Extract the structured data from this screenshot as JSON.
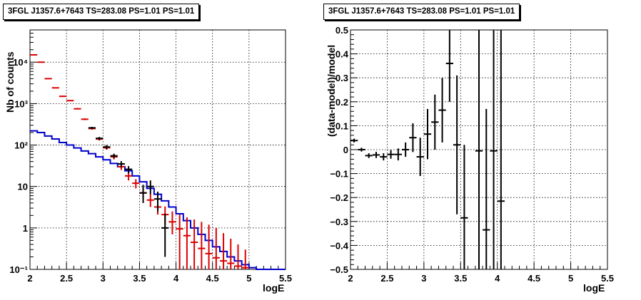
{
  "chart_data": [
    {
      "type": "scatter",
      "title": "3FGL J1357.6+7643 TS=283.08 PS=1.01 PS=1.01",
      "xlabel": "logE",
      "ylabel": "Nb of counts",
      "xlim": [
        2,
        5.5
      ],
      "ylim": [
        0.1,
        60000
      ],
      "yscale": "log",
      "grid": true,
      "xticks": [
        "2",
        "2.5",
        "3",
        "3.5",
        "4",
        "4.5",
        "5",
        "5.5"
      ],
      "yticks": [
        {
          "v": 0.1,
          "label": "10⁻¹"
        },
        {
          "v": 1,
          "label": "1"
        },
        {
          "v": 10,
          "label": "10"
        },
        {
          "v": 100,
          "label": "10²"
        },
        {
          "v": 1000,
          "label": "10³"
        },
        {
          "v": 10000,
          "label": "10⁴"
        }
      ],
      "series": [
        {
          "color": "#0000cc",
          "style": "step",
          "bins": [
            2.0,
            2.1,
            2.2,
            2.3,
            2.4,
            2.5,
            2.6,
            2.7,
            2.8,
            2.9,
            3.0,
            3.1,
            3.2,
            3.3,
            3.4,
            3.5,
            3.6,
            3.7,
            3.8,
            3.9,
            4.0,
            4.1,
            4.2,
            4.3,
            4.4,
            4.5,
            4.6,
            4.7,
            4.8,
            4.9,
            5.0,
            5.1,
            5.2,
            5.3,
            5.4,
            5.5
          ],
          "values": [
            220,
            200,
            165,
            140,
            115,
            100,
            85,
            72,
            62,
            52,
            44,
            36,
            30,
            24,
            18,
            13,
            9,
            6.5,
            4.5,
            3.2,
            2.2,
            1.5,
            1.0,
            0.7,
            0.5,
            0.35,
            0.27,
            0.2,
            0.16,
            0.13,
            0.11,
            0.1,
            0.1,
            0.1,
            0.1
          ]
        },
        {
          "color": "#dd0000",
          "style": "errorbar",
          "halfwidth": 0.05,
          "points": [
            {
              "x": 2.05,
              "y": 15000,
              "lo": 14700,
              "hi": 15300
            },
            {
              "x": 2.15,
              "y": 10000,
              "lo": 9800,
              "hi": 10200
            },
            {
              "x": 2.25,
              "y": 4000,
              "lo": 3900,
              "hi": 4100
            },
            {
              "x": 2.35,
              "y": 2400,
              "lo": 2330,
              "hi": 2470
            },
            {
              "x": 2.45,
              "y": 1500,
              "lo": 1450,
              "hi": 1550
            },
            {
              "x": 2.55,
              "y": 1180,
              "lo": 1140,
              "hi": 1220
            },
            {
              "x": 2.65,
              "y": 750,
              "lo": 720,
              "hi": 780
            },
            {
              "x": 2.75,
              "y": 420,
              "lo": 400,
              "hi": 440
            },
            {
              "x": 2.85,
              "y": 250,
              "lo": 235,
              "hi": 265
            },
            {
              "x": 2.95,
              "y": 140,
              "lo": 128,
              "hi": 152
            },
            {
              "x": 3.05,
              "y": 86,
              "lo": 77,
              "hi": 95
            },
            {
              "x": 3.15,
              "y": 52,
              "lo": 45,
              "hi": 59
            },
            {
              "x": 3.25,
              "y": 30,
              "lo": 25,
              "hi": 35
            },
            {
              "x": 3.35,
              "y": 18,
              "lo": 14,
              "hi": 22
            },
            {
              "x": 3.45,
              "y": 12,
              "lo": 9,
              "hi": 15
            },
            {
              "x": 3.55,
              "y": 7,
              "lo": 5,
              "hi": 9.5
            },
            {
              "x": 3.65,
              "y": 4.7,
              "lo": 3.2,
              "hi": 6.5
            },
            {
              "x": 3.75,
              "y": 3.2,
              "lo": 2.1,
              "hi": 4.6
            },
            {
              "x": 3.85,
              "y": 2.1,
              "lo": 1.2,
              "hi": 3.3
            },
            {
              "x": 3.95,
              "y": 1.4,
              "lo": 0.7,
              "hi": 2.5
            },
            {
              "x": 4.05,
              "y": 0.95,
              "lo": 0.1,
              "hi": 2.1
            },
            {
              "x": 4.15,
              "y": 0.65,
              "lo": 0.1,
              "hi": 1.8
            },
            {
              "x": 4.25,
              "y": 0.45,
              "lo": 0.1,
              "hi": 1.6
            },
            {
              "x": 4.35,
              "y": 0.32,
              "lo": 0.1,
              "hi": 1.4
            },
            {
              "x": 4.45,
              "y": 0.24,
              "lo": 0.1,
              "hi": 1.2
            },
            {
              "x": 4.55,
              "y": 0.19,
              "lo": 0.1,
              "hi": 1.0
            },
            {
              "x": 4.65,
              "y": 0.16,
              "lo": 0.1,
              "hi": 0.75
            },
            {
              "x": 4.75,
              "y": 0.14,
              "lo": 0.1,
              "hi": 0.55
            },
            {
              "x": 4.85,
              "y": 0.12,
              "lo": 0.1,
              "hi": 0.4
            },
            {
              "x": 4.95,
              "y": 0.11,
              "lo": 0.1,
              "hi": 0.3
            }
          ]
        },
        {
          "color": "#000000",
          "style": "errorbar",
          "halfwidth": 0.05,
          "points": [
            {
              "x": 2.85,
              "y": 260,
              "lo": 245,
              "hi": 275
            },
            {
              "x": 2.95,
              "y": 145,
              "lo": 133,
              "hi": 157
            },
            {
              "x": 3.05,
              "y": 90,
              "lo": 80,
              "hi": 100
            },
            {
              "x": 3.15,
              "y": 55,
              "lo": 48,
              "hi": 62
            },
            {
              "x": 3.25,
              "y": 35,
              "lo": 29,
              "hi": 41
            },
            {
              "x": 3.35,
              "y": 26,
              "lo": 21,
              "hi": 31
            },
            {
              "x": 3.55,
              "y": 7,
              "lo": 4,
              "hi": 11
            },
            {
              "x": 3.65,
              "y": 10,
              "lo": 6.5,
              "hi": 14
            },
            {
              "x": 3.75,
              "y": 5,
              "lo": 2.5,
              "hi": 7.5
            },
            {
              "x": 3.85,
              "y": 1.0,
              "lo": 0.2,
              "hi": 2.2
            }
          ]
        }
      ]
    },
    {
      "type": "scatter",
      "title": "3FGL J1357.6+7643 TS=283.08 PS=1.01 PS=1.01",
      "xlabel": "logE",
      "ylabel": "(data-model)/model",
      "xlim": [
        2,
        5.5
      ],
      "ylim": [
        -0.5,
        0.5
      ],
      "yscale": "linear",
      "grid": true,
      "xticks": [
        "2",
        "2.5",
        "3",
        "3.5",
        "4",
        "4.5",
        "5",
        "5.5"
      ],
      "yticks": [
        {
          "v": -0.5,
          "label": "−0.5"
        },
        {
          "v": -0.4,
          "label": "−0.4"
        },
        {
          "v": -0.3,
          "label": "−0.3"
        },
        {
          "v": -0.2,
          "label": "−0.2"
        },
        {
          "v": -0.1,
          "label": "−0.1"
        },
        {
          "v": 0,
          "label": "0"
        },
        {
          "v": 0.1,
          "label": "0.1"
        },
        {
          "v": 0.2,
          "label": "0.2"
        },
        {
          "v": 0.3,
          "label": "0.3"
        },
        {
          "v": 0.4,
          "label": "0.4"
        },
        {
          "v": 0.5,
          "label": "0.5"
        }
      ],
      "series": [
        {
          "color": "#000000",
          "style": "errorbar",
          "halfwidth": 0.05,
          "points": [
            {
              "x": 2.05,
              "y": 0.038,
              "lo": 0.03,
              "hi": 0.046
            },
            {
              "x": 2.15,
              "y": 0.0,
              "lo": -0.008,
              "hi": 0.008
            },
            {
              "x": 2.25,
              "y": -0.025,
              "lo": -0.035,
              "hi": -0.015
            },
            {
              "x": 2.35,
              "y": -0.022,
              "lo": -0.035,
              "hi": -0.009
            },
            {
              "x": 2.45,
              "y": -0.03,
              "lo": -0.045,
              "hi": -0.015
            },
            {
              "x": 2.55,
              "y": -0.02,
              "lo": -0.038,
              "hi": -0.002
            },
            {
              "x": 2.65,
              "y": -0.02,
              "lo": -0.045,
              "hi": 0.005
            },
            {
              "x": 2.75,
              "y": 0.0,
              "lo": -0.03,
              "hi": 0.03
            },
            {
              "x": 2.85,
              "y": 0.05,
              "lo": -0.01,
              "hi": 0.11
            },
            {
              "x": 2.95,
              "y": -0.03,
              "lo": -0.11,
              "hi": 0.05
            },
            {
              "x": 3.05,
              "y": 0.065,
              "lo": -0.04,
              "hi": 0.17
            },
            {
              "x": 3.15,
              "y": 0.115,
              "lo": 0.0,
              "hi": 0.23
            },
            {
              "x": 3.25,
              "y": 0.165,
              "lo": 0.03,
              "hi": 0.3
            },
            {
              "x": 3.35,
              "y": 0.36,
              "lo": 0.2,
              "hi": 0.5
            },
            {
              "x": 3.45,
              "y": 0.02,
              "lo": -0.27,
              "hi": 0.31
            },
            {
              "x": 3.55,
              "y": -0.285,
              "lo": -0.5,
              "hi": 0.02
            },
            {
              "x": 3.75,
              "y": -0.005,
              "lo": -0.5,
              "hi": 0.5
            },
            {
              "x": 3.85,
              "y": -0.335,
              "lo": -0.5,
              "hi": 0.17
            },
            {
              "x": 3.95,
              "y": -0.005,
              "lo": -0.5,
              "hi": 0.5
            },
            {
              "x": 4.05,
              "y": -0.215,
              "lo": -0.5,
              "hi": 0.5
            }
          ]
        }
      ]
    }
  ]
}
